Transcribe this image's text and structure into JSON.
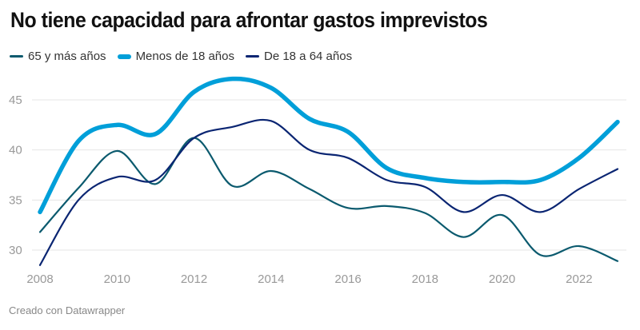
{
  "chart_data": {
    "type": "line",
    "title": "No tiene capacidad para afrontar gastos imprevistos",
    "xlabel": "",
    "ylabel": "",
    "x": [
      2008,
      2009,
      2010,
      2011,
      2012,
      2013,
      2014,
      2015,
      2016,
      2017,
      2018,
      2019,
      2020,
      2021,
      2022,
      2023
    ],
    "xticks": [
      "2008",
      "2010",
      "2012",
      "2014",
      "2016",
      "2018",
      "2020",
      "2022"
    ],
    "yticks": [
      "30",
      "35",
      "40",
      "45"
    ],
    "ylim": [
      28,
      48
    ],
    "xlim": [
      2008,
      2023
    ],
    "grid": true,
    "legend_position": "top-left",
    "series": [
      {
        "name": "65 y más años",
        "color": "#0b5a6e",
        "width": "thin",
        "values": [
          31.8,
          36.2,
          39.9,
          36.6,
          41.2,
          36.4,
          37.9,
          36.1,
          34.2,
          34.4,
          33.7,
          31.3,
          33.5,
          29.5,
          30.4,
          28.9
        ]
      },
      {
        "name": "Menos de 18 años",
        "color": "#009fd9",
        "width": "thick",
        "values": [
          33.8,
          40.9,
          42.5,
          41.6,
          45.8,
          47.1,
          46.2,
          43.1,
          41.8,
          38.2,
          37.2,
          36.8,
          36.8,
          37.0,
          39.2,
          42.8
        ]
      },
      {
        "name": "De 18 a 64 años",
        "color": "#0a2572",
        "width": "thin",
        "values": [
          28.5,
          35.0,
          37.3,
          37.0,
          41.2,
          42.3,
          42.9,
          40.0,
          39.2,
          37.0,
          36.3,
          33.8,
          35.5,
          33.8,
          36.1,
          38.1
        ]
      }
    ]
  },
  "footer": "Creado con Datawrapper"
}
